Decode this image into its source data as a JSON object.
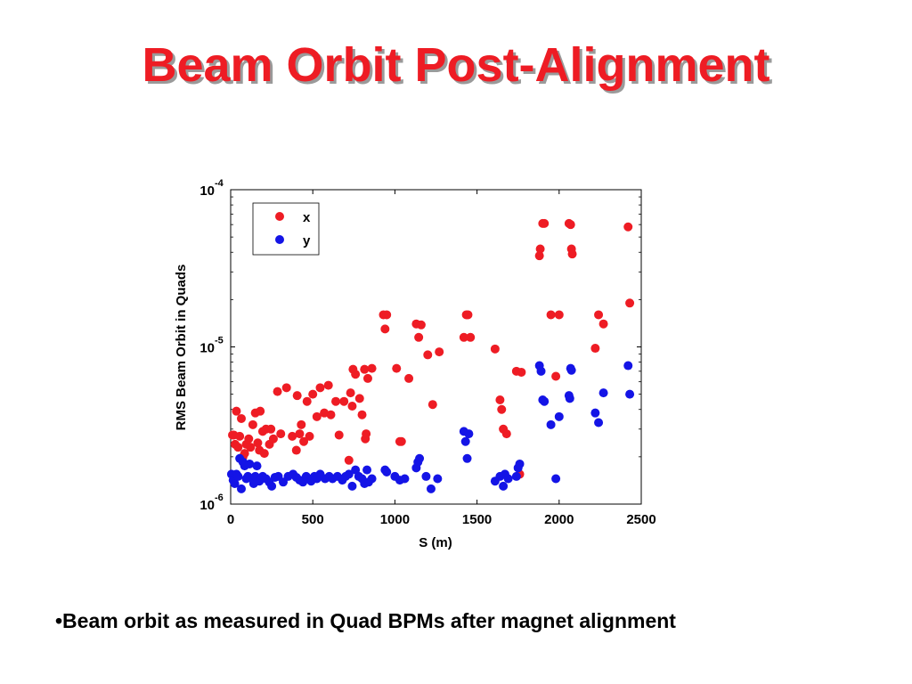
{
  "slide": {
    "title": "Beam Orbit Post-Alignment",
    "bullet": "•Beam orbit as measured in Quad BPMs after magnet alignment"
  },
  "colors": {
    "title": "#ee1c24",
    "x_series": "#ee1c24",
    "y_series": "#1414e6"
  },
  "chart_data": {
    "type": "scatter",
    "xlabel": "S (m)",
    "ylabel": "RMS Beam Orbit in Quads",
    "xlim": [
      0,
      2500
    ],
    "ylim": [
      1e-06,
      0.0001
    ],
    "yscale": "log",
    "xticks": [
      0,
      500,
      1000,
      1500,
      2000,
      2500
    ],
    "yticks": [
      {
        "value": 1e-06,
        "base": "10",
        "exp": "-6"
      },
      {
        "value": 1e-05,
        "base": "10",
        "exp": "-5"
      },
      {
        "value": 0.0001,
        "base": "10",
        "exp": "-4"
      }
    ],
    "legend_position": "top-left",
    "series": [
      {
        "name": "x",
        "color": "#ee1c24",
        "points": [
          [
            11,
            2.75e-06
          ],
          [
            19,
            2.75e-06
          ],
          [
            27,
            2.4e-06
          ],
          [
            35,
            3.9e-06
          ],
          [
            45,
            2.3e-06
          ],
          [
            55,
            2.7e-06
          ],
          [
            65,
            3.5e-06
          ],
          [
            75,
            2e-06
          ],
          [
            85,
            2.1e-06
          ],
          [
            95,
            2.4e-06
          ],
          [
            110,
            2.6e-06
          ],
          [
            121,
            2.3e-06
          ],
          [
            135,
            3.2e-06
          ],
          [
            150,
            3.8e-06
          ],
          [
            165,
            2.45e-06
          ],
          [
            175,
            2.2e-06
          ],
          [
            180,
            3.9e-06
          ],
          [
            195,
            2.9e-06
          ],
          [
            205,
            2.1e-06
          ],
          [
            215,
            3e-06
          ],
          [
            236,
            2.4e-06
          ],
          [
            245,
            3e-06
          ],
          [
            260,
            2.6e-06
          ],
          [
            285,
            5.2e-06
          ],
          [
            305,
            2.8e-06
          ],
          [
            340,
            5.5e-06
          ],
          [
            375,
            2.7e-06
          ],
          [
            400,
            2.2e-06
          ],
          [
            405,
            4.9e-06
          ],
          [
            420,
            2.8e-06
          ],
          [
            430,
            3.2e-06
          ],
          [
            445,
            2.5e-06
          ],
          [
            465,
            4.5e-06
          ],
          [
            480,
            2.7e-06
          ],
          [
            500,
            5e-06
          ],
          [
            525,
            3.6e-06
          ],
          [
            545,
            5.5e-06
          ],
          [
            570,
            3.8e-06
          ],
          [
            595,
            5.7e-06
          ],
          [
            610,
            3.7e-06
          ],
          [
            640,
            4.5e-06
          ],
          [
            660,
            2.75e-06
          ],
          [
            690,
            4.5e-06
          ],
          [
            720,
            1.9e-06
          ],
          [
            730,
            5.1e-06
          ],
          [
            740,
            4.2e-06
          ],
          [
            745,
            7.2e-06
          ],
          [
            760,
            6.7e-06
          ],
          [
            785,
            4.7e-06
          ],
          [
            800,
            3.7e-06
          ],
          [
            815,
            7.2e-06
          ],
          [
            820,
            2.6e-06
          ],
          [
            825,
            2.8e-06
          ],
          [
            835,
            6.3e-06
          ],
          [
            860,
            7.3e-06
          ],
          [
            930,
            1.6e-05
          ],
          [
            940,
            1.3e-05
          ],
          [
            950,
            1.6e-05
          ],
          [
            1010,
            7.3e-06
          ],
          [
            1030,
            2.5e-06
          ],
          [
            1040,
            2.5e-06
          ],
          [
            1085,
            6.3e-06
          ],
          [
            1130,
            1.4e-05
          ],
          [
            1145,
            1.15e-05
          ],
          [
            1160,
            1.38e-05
          ],
          [
            1200,
            8.9e-06
          ],
          [
            1230,
            4.3e-06
          ],
          [
            1270,
            9.3e-06
          ],
          [
            1420,
            1.15e-05
          ],
          [
            1435,
            1.6e-05
          ],
          [
            1445,
            1.6e-05
          ],
          [
            1460,
            1.15e-05
          ],
          [
            1610,
            9.7e-06
          ],
          [
            1640,
            4.6e-06
          ],
          [
            1650,
            4e-06
          ],
          [
            1660,
            3e-06
          ],
          [
            1680,
            2.8e-06
          ],
          [
            1740,
            7e-06
          ],
          [
            1760,
            1.55e-06
          ],
          [
            1770,
            6.9e-06
          ],
          [
            1880,
            3.8e-05
          ],
          [
            1885,
            4.2e-05
          ],
          [
            1900,
            6.1e-05
          ],
          [
            1910,
            6.1e-05
          ],
          [
            1950,
            1.6e-05
          ],
          [
            1980,
            6.5e-06
          ],
          [
            2000,
            1.6e-05
          ],
          [
            2060,
            6.1e-05
          ],
          [
            2070,
            6e-05
          ],
          [
            2075,
            4.2e-05
          ],
          [
            2080,
            3.9e-05
          ],
          [
            2220,
            9.8e-06
          ],
          [
            2240,
            1.6e-05
          ],
          [
            2270,
            1.4e-05
          ],
          [
            2420,
            5.8e-05
          ],
          [
            2430,
            1.9e-05
          ]
        ]
      },
      {
        "name": "y",
        "color": "#1414e6",
        "points": [
          [
            5,
            1.55e-06
          ],
          [
            15,
            1.42e-06
          ],
          [
            25,
            1.35e-06
          ],
          [
            35,
            1.55e-06
          ],
          [
            45,
            1.5e-06
          ],
          [
            55,
            1.95e-06
          ],
          [
            65,
            1.25e-06
          ],
          [
            75,
            1.85e-06
          ],
          [
            85,
            1.75e-06
          ],
          [
            95,
            1.45e-06
          ],
          [
            105,
            1.5e-06
          ],
          [
            115,
            1.8e-06
          ],
          [
            130,
            1.45e-06
          ],
          [
            140,
            1.35e-06
          ],
          [
            150,
            1.5e-06
          ],
          [
            160,
            1.75e-06
          ],
          [
            175,
            1.4e-06
          ],
          [
            195,
            1.5e-06
          ],
          [
            215,
            1.45e-06
          ],
          [
            235,
            1.38e-06
          ],
          [
            250,
            1.3e-06
          ],
          [
            270,
            1.48e-06
          ],
          [
            290,
            1.5e-06
          ],
          [
            320,
            1.38e-06
          ],
          [
            350,
            1.5e-06
          ],
          [
            380,
            1.55e-06
          ],
          [
            400,
            1.48e-06
          ],
          [
            420,
            1.42e-06
          ],
          [
            440,
            1.38e-06
          ],
          [
            460,
            1.5e-06
          ],
          [
            490,
            1.4e-06
          ],
          [
            510,
            1.5e-06
          ],
          [
            525,
            1.45e-06
          ],
          [
            545,
            1.55e-06
          ],
          [
            575,
            1.45e-06
          ],
          [
            600,
            1.5e-06
          ],
          [
            620,
            1.45e-06
          ],
          [
            650,
            1.5e-06
          ],
          [
            680,
            1.42e-06
          ],
          [
            700,
            1.5e-06
          ],
          [
            720,
            1.55e-06
          ],
          [
            740,
            1.3e-06
          ],
          [
            760,
            1.65e-06
          ],
          [
            780,
            1.5e-06
          ],
          [
            800,
            1.45e-06
          ],
          [
            815,
            1.35e-06
          ],
          [
            830,
            1.65e-06
          ],
          [
            840,
            1.38e-06
          ],
          [
            860,
            1.45e-06
          ],
          [
            940,
            1.65e-06
          ],
          [
            950,
            1.6e-06
          ],
          [
            1000,
            1.5e-06
          ],
          [
            1030,
            1.42e-06
          ],
          [
            1060,
            1.45e-06
          ],
          [
            1130,
            1.7e-06
          ],
          [
            1140,
            1.85e-06
          ],
          [
            1150,
            1.95e-06
          ],
          [
            1190,
            1.5e-06
          ],
          [
            1220,
            1.25e-06
          ],
          [
            1260,
            1.45e-06
          ],
          [
            1420,
            2.9e-06
          ],
          [
            1430,
            2.5e-06
          ],
          [
            1440,
            1.95e-06
          ],
          [
            1450,
            2.8e-06
          ],
          [
            1610,
            1.4e-06
          ],
          [
            1640,
            1.5e-06
          ],
          [
            1660,
            1.3e-06
          ],
          [
            1670,
            1.55e-06
          ],
          [
            1690,
            1.45e-06
          ],
          [
            1740,
            1.5e-06
          ],
          [
            1750,
            1.7e-06
          ],
          [
            1760,
            1.8e-06
          ],
          [
            1880,
            7.6e-06
          ],
          [
            1890,
            7e-06
          ],
          [
            1900,
            4.6e-06
          ],
          [
            1910,
            4.5e-06
          ],
          [
            1950,
            3.2e-06
          ],
          [
            1980,
            1.45e-06
          ],
          [
            2000,
            3.6e-06
          ],
          [
            2060,
            4.9e-06
          ],
          [
            2065,
            4.7e-06
          ],
          [
            2070,
            7.3e-06
          ],
          [
            2075,
            7.1e-06
          ],
          [
            2220,
            3.8e-06
          ],
          [
            2240,
            3.3e-06
          ],
          [
            2270,
            5.1e-06
          ],
          [
            2420,
            7.6e-06
          ],
          [
            2430,
            5e-06
          ]
        ]
      }
    ]
  }
}
